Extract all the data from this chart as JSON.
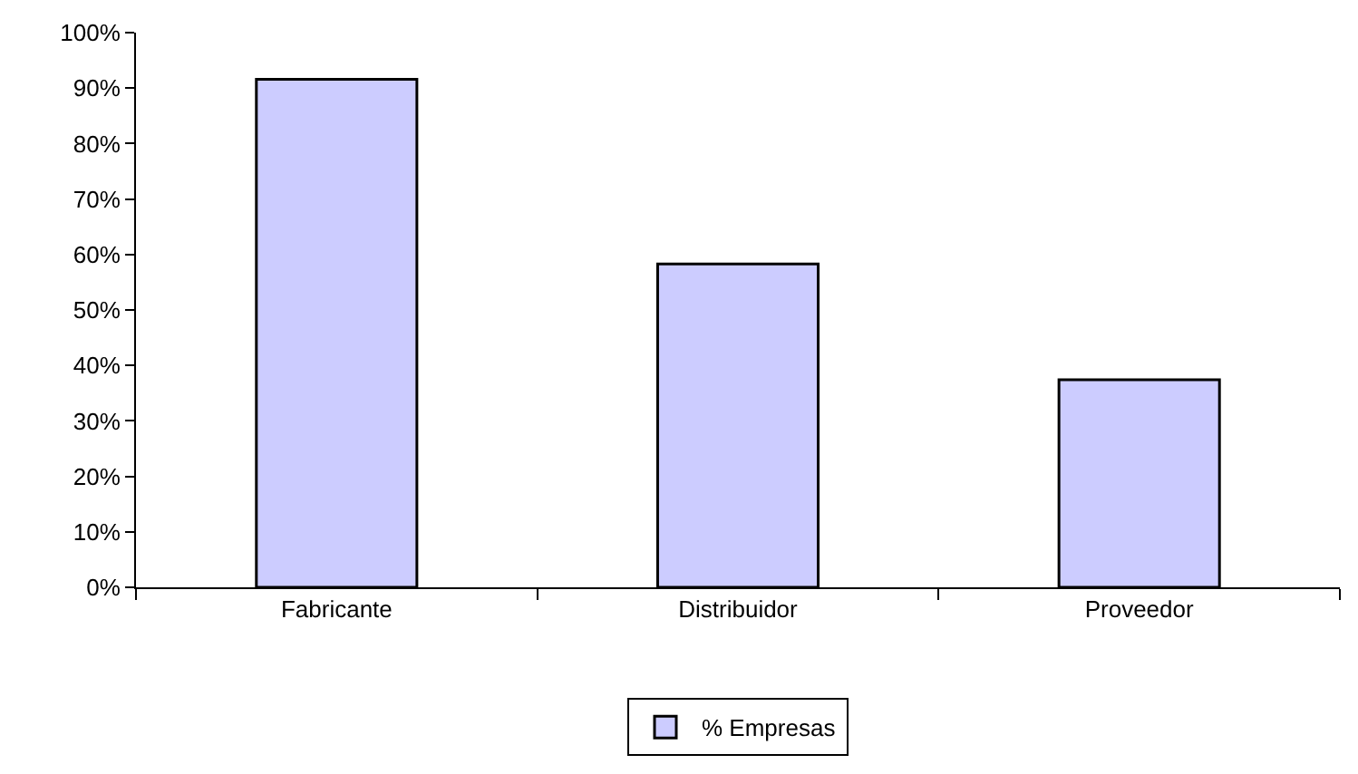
{
  "chart_data": {
    "type": "bar",
    "categories": [
      "Fabricante",
      "Distribuidor",
      "Proveedor"
    ],
    "series": [
      {
        "name": "% Empresas",
        "color": "#ccccff",
        "values": [
          91.6,
          58.3,
          37.4
        ]
      }
    ],
    "ylim": [
      0,
      100
    ],
    "yticks": [
      {
        "value": 0,
        "label": "0%"
      },
      {
        "value": 10,
        "label": "10%"
      },
      {
        "value": 20,
        "label": "20%"
      },
      {
        "value": 30,
        "label": "30%"
      },
      {
        "value": 40,
        "label": "40%"
      },
      {
        "value": 50,
        "label": "50%"
      },
      {
        "value": 60,
        "label": "60%"
      },
      {
        "value": 70,
        "label": "70%"
      },
      {
        "value": 80,
        "label": "80%"
      },
      {
        "value": 90,
        "label": "90%"
      },
      {
        "value": 100,
        "label": "100%"
      }
    ],
    "grid": false,
    "legend": "bottom"
  }
}
